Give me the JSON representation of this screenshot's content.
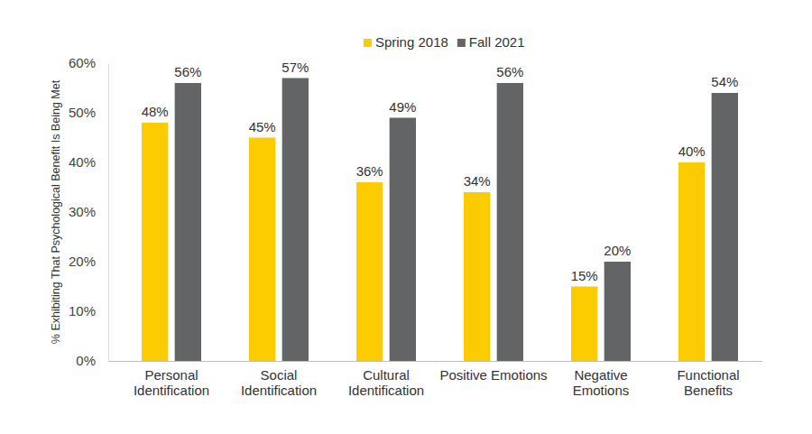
{
  "chart_data": {
    "type": "bar",
    "y_label": "% Exhibiting That Psychological Benefit Is Being Met",
    "categories": [
      "Personal\nIdentification",
      "Social\nIdentification",
      "Cultural\nIdentification",
      "Positive Emotions",
      "Negative\nEmotions",
      "Functional\nBenefits"
    ],
    "series": [
      {
        "name": "Spring 2018",
        "color": "#fccb00",
        "values": [
          48,
          45,
          36,
          34,
          15,
          40
        ],
        "value_labels": [
          "48%",
          "45%",
          "36%",
          "34%",
          "15%",
          "40%"
        ]
      },
      {
        "name": "Fall 2021",
        "color": "#636466",
        "values": [
          56,
          57,
          49,
          56,
          20,
          54
        ],
        "value_labels": [
          "56%",
          "57%",
          "49%",
          "56%",
          "20%",
          "54%"
        ]
      }
    ],
    "ylim": [
      0,
      60
    ],
    "yticks": [
      {
        "value": 0,
        "label": "0%"
      },
      {
        "value": 10,
        "label": "10%"
      },
      {
        "value": 20,
        "label": "20%"
      },
      {
        "value": 30,
        "label": "30%"
      },
      {
        "value": 40,
        "label": "40%"
      },
      {
        "value": 50,
        "label": "50%"
      },
      {
        "value": 60,
        "label": "60%"
      }
    ],
    "legend": "top",
    "data_labels": true,
    "grid": false
  }
}
